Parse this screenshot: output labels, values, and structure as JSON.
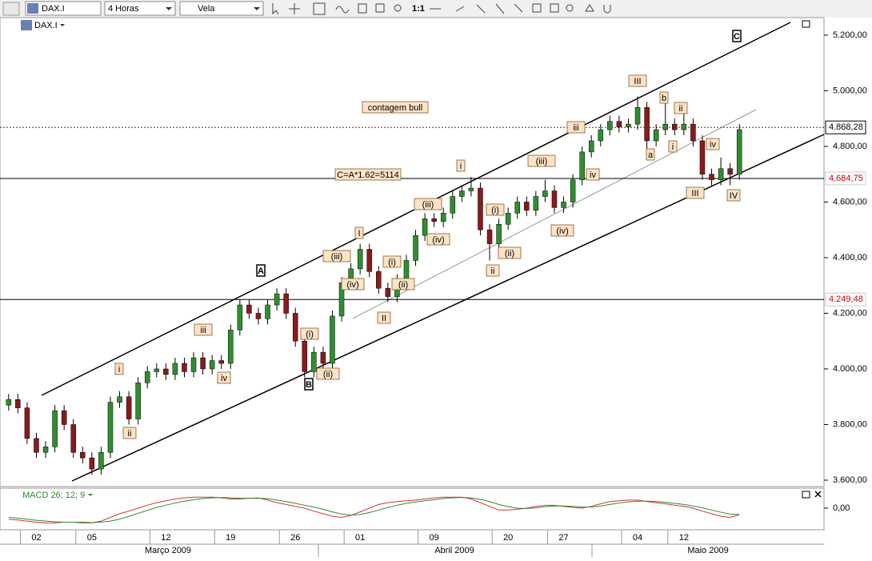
{
  "toolbar": {
    "symbol": "DAX.I",
    "period": "4 Horas",
    "style": "Vela",
    "zoom": "1:1"
  },
  "chart_data": [
    {
      "type": "candlestick",
      "symbol_label": "DAX.I",
      "up_color": "#2f8f2f",
      "down_color": "#8b1a1a",
      "categories": [
        null,
        null,
        null,
        "02",
        null,
        null,
        null,
        null,
        null,
        "05",
        null,
        null,
        null,
        null,
        null,
        null,
        null,
        "12",
        null,
        null,
        null,
        null,
        null,
        null,
        "19",
        null,
        null,
        null,
        null,
        null,
        null,
        "26",
        null,
        null,
        null,
        null,
        null,
        null,
        "01",
        null,
        null,
        null,
        null,
        null,
        null,
        null,
        "09",
        null,
        null,
        null,
        null,
        null,
        null,
        null,
        "20",
        null,
        null,
        null,
        null,
        null,
        "27",
        null,
        null,
        null,
        null,
        null,
        null,
        null,
        "04",
        null,
        null,
        null,
        null,
        "12",
        null,
        null,
        null,
        null,
        null,
        null
      ],
      "months": [
        "Março 2009",
        "Abril 2009",
        "Maio 2009"
      ],
      "ohlc": [
        [
          3870,
          3910,
          3850,
          3890
        ],
        [
          3890,
          3910,
          3840,
          3860
        ],
        [
          3860,
          3880,
          3730,
          3750
        ],
        [
          3750,
          3770,
          3680,
          3700
        ],
        [
          3700,
          3740,
          3680,
          3720
        ],
        [
          3720,
          3870,
          3700,
          3850
        ],
        [
          3850,
          3870,
          3780,
          3800
        ],
        [
          3800,
          3820,
          3680,
          3700
        ],
        [
          3700,
          3720,
          3660,
          3680
        ],
        [
          3680,
          3700,
          3620,
          3640
        ],
        [
          3640,
          3720,
          3620,
          3700
        ],
        [
          3700,
          3900,
          3680,
          3880
        ],
        [
          3880,
          3920,
          3860,
          3900
        ],
        [
          3900,
          3920,
          3800,
          3820
        ],
        [
          3820,
          3970,
          3800,
          3950
        ],
        [
          3950,
          4010,
          3930,
          3990
        ],
        [
          3990,
          4020,
          3970,
          4000
        ],
        [
          4000,
          4020,
          3960,
          3980
        ],
        [
          3980,
          4040,
          3960,
          4020
        ],
        [
          4020,
          4040,
          3970,
          3990
        ],
        [
          3990,
          4060,
          3970,
          4040
        ],
        [
          4040,
          4060,
          3980,
          4000
        ],
        [
          4000,
          4050,
          3980,
          4030
        ],
        [
          4030,
          4050,
          4000,
          4020
        ],
        [
          4020,
          4160,
          4000,
          4140
        ],
        [
          4140,
          4250,
          4120,
          4230
        ],
        [
          4230,
          4250,
          4180,
          4200
        ],
        [
          4200,
          4220,
          4160,
          4180
        ],
        [
          4180,
          4250,
          4160,
          4230
        ],
        [
          4230,
          4290,
          4210,
          4270
        ],
        [
          4270,
          4290,
          4180,
          4200
        ],
        [
          4200,
          4220,
          4080,
          4100
        ],
        [
          4100,
          4120,
          3970,
          3990
        ],
        [
          3990,
          4080,
          3970,
          4060
        ],
        [
          4060,
          4080,
          4000,
          4020
        ],
        [
          4020,
          4210,
          4000,
          4190
        ],
        [
          4190,
          4330,
          4170,
          4310
        ],
        [
          4310,
          4380,
          4290,
          4360
        ],
        [
          4360,
          4450,
          4340,
          4430
        ],
        [
          4430,
          4450,
          4330,
          4350
        ],
        [
          4350,
          4370,
          4270,
          4290
        ],
        [
          4290,
          4310,
          4240,
          4260
        ],
        [
          4260,
          4340,
          4240,
          4320
        ],
        [
          4320,
          4410,
          4300,
          4390
        ],
        [
          4390,
          4500,
          4370,
          4480
        ],
        [
          4480,
          4560,
          4460,
          4540
        ],
        [
          4540,
          4560,
          4510,
          4530
        ],
        [
          4530,
          4580,
          4510,
          4560
        ],
        [
          4560,
          4640,
          4540,
          4620
        ],
        [
          4620,
          4660,
          4600,
          4640
        ],
        [
          4640,
          4690,
          4620,
          4650
        ],
        [
          4650,
          4670,
          4480,
          4500
        ],
        [
          4500,
          4520,
          4390,
          4450
        ],
        [
          4450,
          4540,
          4430,
          4520
        ],
        [
          4520,
          4580,
          4500,
          4560
        ],
        [
          4560,
          4620,
          4540,
          4600
        ],
        [
          4600,
          4620,
          4550,
          4570
        ],
        [
          4570,
          4640,
          4550,
          4620
        ],
        [
          4620,
          4680,
          4600,
          4640
        ],
        [
          4640,
          4660,
          4560,
          4580
        ],
        [
          4580,
          4620,
          4560,
          4600
        ],
        [
          4600,
          4700,
          4580,
          4680
        ],
        [
          4680,
          4800,
          4660,
          4780
        ],
        [
          4780,
          4840,
          4760,
          4820
        ],
        [
          4820,
          4880,
          4800,
          4860
        ],
        [
          4860,
          4910,
          4840,
          4890
        ],
        [
          4890,
          4910,
          4850,
          4870
        ],
        [
          4870,
          4900,
          4850,
          4880
        ],
        [
          4880,
          4980,
          4860,
          4940
        ],
        [
          4940,
          4960,
          4780,
          4820
        ],
        [
          4820,
          4880,
          4800,
          4860
        ],
        [
          4860,
          4960,
          4840,
          4880
        ],
        [
          4880,
          4900,
          4840,
          4860
        ],
        [
          4860,
          4920,
          4840,
          4880
        ],
        [
          4880,
          4900,
          4800,
          4820
        ],
        [
          4820,
          4840,
          4680,
          4700
        ],
        [
          4700,
          4720,
          4660,
          4680
        ],
        [
          4680,
          4760,
          4660,
          4720
        ],
        [
          4720,
          4740,
          4660,
          4700
        ],
        [
          4700,
          4880,
          4680,
          4860
        ]
      ],
      "ylim": [
        3577,
        5263
      ],
      "yticks": [
        {
          "value": 3600,
          "label": "3.600,00"
        },
        {
          "value": 3800,
          "label": "3.800,00"
        },
        {
          "value": 4000,
          "label": "4.000,00"
        },
        {
          "value": 4200,
          "label": "4.200,00"
        },
        {
          "value": 4400,
          "label": "4.400,00"
        },
        {
          "value": 4600,
          "label": "4.600,00"
        },
        {
          "value": 4800,
          "label": "4.800,00"
        },
        {
          "value": 5000,
          "label": "5.000,00"
        },
        {
          "value": 5200,
          "label": "5.200,00"
        }
      ],
      "levels": [
        {
          "value": 4868.28,
          "label": "4.868,28",
          "color": "#cc0000",
          "label_color": "#000000"
        },
        {
          "value": 4684.75,
          "label": "4.684,75",
          "color": "#000000",
          "label_color": "#cc0000"
        },
        {
          "value": 4249.48,
          "label": "4.249,48",
          "color": "#000000",
          "label_color": "#cc0000"
        }
      ],
      "annotations": [
        "C",
        "III",
        "b",
        "ii",
        "iii",
        "a",
        "i",
        "iv",
        "iv",
        "III",
        "IV",
        "i",
        "(iii)",
        "(iii)",
        "(iv)",
        "(i)",
        "(ii)",
        "ii",
        "(iv)",
        "I",
        "(iii)",
        "(iv)",
        "(i)",
        "(ii)",
        "II",
        "A",
        "iii",
        "iv",
        "(i)",
        "(ii)",
        "B",
        "i",
        "ii",
        "contagem bull",
        "C=A*1.62=5114"
      ]
    },
    {
      "type": "line",
      "title": "MACD 26; 12; 9",
      "ylim": [
        -50,
        50
      ],
      "yticks": [
        {
          "value": 0,
          "label": "0,00"
        }
      ],
      "series": [
        {
          "color": "#e03030",
          "values": [
            -30,
            -32,
            -35,
            -38,
            -40,
            -40,
            -38,
            -38,
            -40,
            -40,
            -35,
            -25,
            -15,
            -8,
            0,
            8,
            15,
            20,
            25,
            28,
            30,
            30,
            30,
            28,
            25,
            25,
            27,
            28,
            22,
            15,
            10,
            5,
            0,
            -8,
            -15,
            -22,
            -25,
            -20,
            -10,
            0,
            10,
            15,
            18,
            20,
            22,
            25,
            28,
            30,
            30,
            30,
            25,
            15,
            5,
            -5,
            -5,
            -3,
            0,
            5,
            8,
            8,
            5,
            2,
            0,
            5,
            12,
            18,
            20,
            22,
            22,
            18,
            15,
            12,
            8,
            5,
            0,
            -8,
            -15,
            -22,
            -25,
            -18
          ]
        },
        {
          "color": "#2e8b2e",
          "values": [
            -25,
            -27,
            -30,
            -33,
            -35,
            -37,
            -38,
            -38,
            -38,
            -39,
            -38,
            -35,
            -30,
            -22,
            -14,
            -6,
            2,
            8,
            14,
            19,
            23,
            26,
            28,
            29,
            28,
            27,
            27,
            27,
            26,
            22,
            18,
            13,
            8,
            3,
            -3,
            -10,
            -16,
            -19,
            -17,
            -12,
            -5,
            2,
            8,
            13,
            17,
            20,
            23,
            26,
            28,
            29,
            28,
            24,
            18,
            10,
            4,
            0,
            -1,
            1,
            4,
            6,
            6,
            5,
            3,
            3,
            6,
            10,
            14,
            17,
            19,
            19,
            18,
            16,
            13,
            10,
            6,
            1,
            -5,
            -11,
            -16,
            -17
          ]
        }
      ]
    }
  ]
}
